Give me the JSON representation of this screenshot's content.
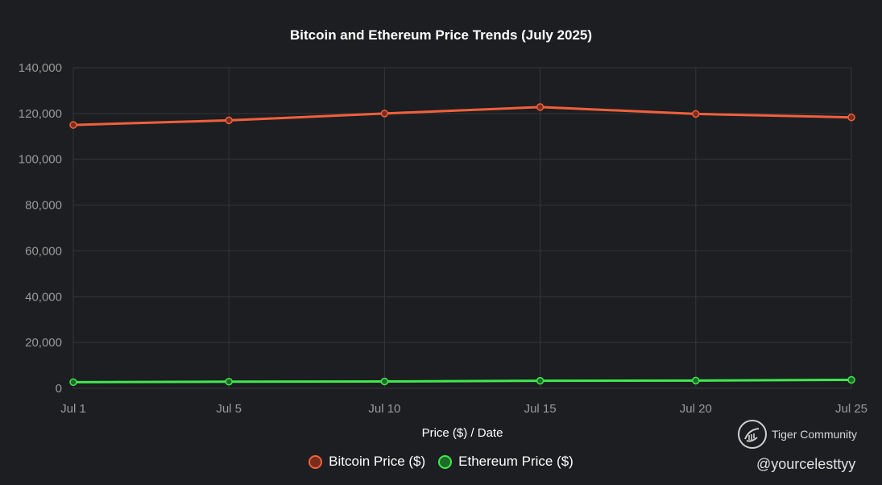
{
  "chart_data": {
    "type": "line",
    "title": "Bitcoin and Ethereum Price Trends (July 2025)",
    "xlabel": "Price ($) / Date",
    "ylabel": "",
    "categories": [
      "Jul 1",
      "Jul 5",
      "Jul 10",
      "Jul 15",
      "Jul 20",
      "Jul 25"
    ],
    "ylim": [
      0,
      140000
    ],
    "yticks": [
      0,
      20000,
      40000,
      60000,
      80000,
      100000,
      120000,
      140000
    ],
    "ytick_labels": [
      "0",
      "20,000",
      "40,000",
      "60,000",
      "80,000",
      "100,000",
      "120,000",
      "140,000"
    ],
    "grid": true,
    "legend_position": "bottom",
    "series": [
      {
        "name": "Bitcoin Price ($)",
        "color": "#f0603c",
        "values": [
          115000,
          117000,
          120000,
          122800,
          119800,
          118300
        ]
      },
      {
        "name": "Ethereum Price ($)",
        "color": "#3fe84f",
        "values": [
          2700,
          2900,
          3000,
          3300,
          3400,
          3700
        ]
      }
    ]
  },
  "watermark": {
    "brand": "Tiger Community",
    "handle": "@yourcelesttyy",
    "logo_icon": "tiger-community-logo-icon"
  }
}
